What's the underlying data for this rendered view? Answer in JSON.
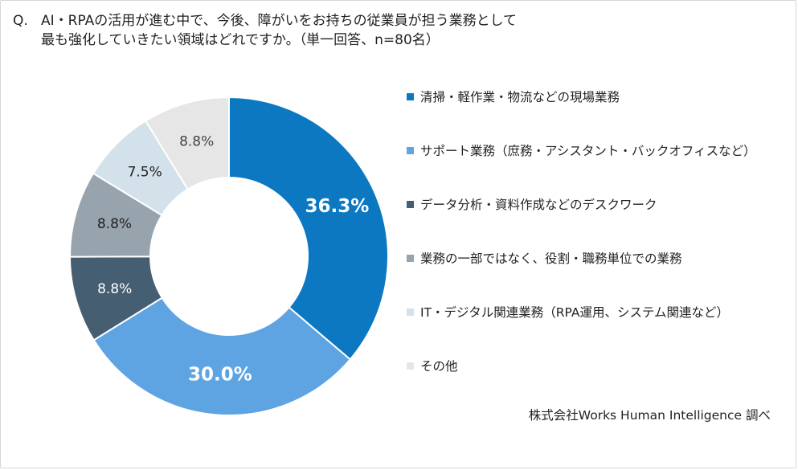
{
  "question": {
    "mark": "Q.",
    "text": "AI・RPAの活用が進む中で、今後、障がいをお持ちの従業員が担う業務として\n最も強化していきたい領域はどれですか。（単一回答、n=80名）"
  },
  "source": "株式会社Works Human Intelligence 調べ",
  "chart_data": {
    "type": "pie",
    "donut": true,
    "categories": [
      "清掃・軽作業・物流などの現場業務",
      "サポート業務（庶務・アシスタント・バックオフィスなど）",
      "データ分析・資料作成などのデスクワーク",
      "業務の一部ではなく、役割・職務単位での業務",
      "IT・デジタル関連業務（RPA運用、システム関連など）",
      "その他"
    ],
    "values": [
      36.3,
      30.0,
      8.8,
      8.8,
      7.5,
      8.8
    ],
    "labels": [
      "36.3%",
      "30.0%",
      "8.8%",
      "8.8%",
      "7.5%",
      "8.8%"
    ],
    "colors": [
      "#0b78c1",
      "#5ea4e2",
      "#455e71",
      "#97a3ad",
      "#d3e2ea",
      "#e6e6e6"
    ],
    "label_colors": [
      "#ffffff",
      "#ffffff",
      "#ffffff",
      "#222222",
      "#222222",
      "#444444"
    ],
    "legend_position": "right"
  }
}
